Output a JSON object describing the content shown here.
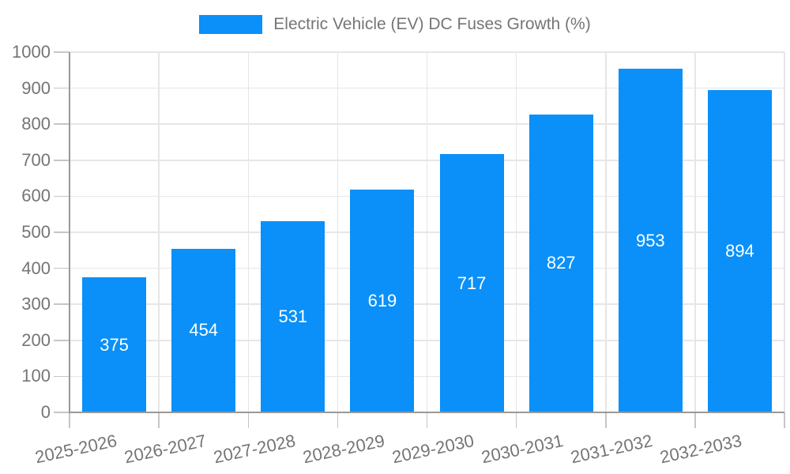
{
  "chart_data": {
    "type": "bar",
    "title": "Electric Vehicle (EV) DC Fuses Growth (%)",
    "categories": [
      "2025-2026",
      "2026-2027",
      "2027-2028",
      "2028-2029",
      "2029-2030",
      "2030-2031",
      "2031-2032",
      "2032-2033"
    ],
    "values": [
      375,
      454,
      531,
      619,
      717,
      827,
      953,
      894
    ],
    "xlabel": "",
    "ylabel": "",
    "ylim": [
      0,
      1000
    ],
    "ytick_step": 100,
    "ytick_labels": [
      "0",
      "100",
      "200",
      "300",
      "400",
      "500",
      "600",
      "700",
      "800",
      "900",
      "1000"
    ],
    "grid": true,
    "legend_position": "top-center",
    "legend_entries": [
      "Electric Vehicle (EV) DC Fuses Growth (%)"
    ],
    "value_labels_shown": true,
    "colors": {
      "bar": "#0a90f8",
      "value_label": "#ffffff",
      "axis_text": "#757575",
      "axis_line": "#999999",
      "tick_line": "#c6c6c6",
      "grid_line": "#e6e6e6",
      "background": "#ffffff"
    }
  }
}
